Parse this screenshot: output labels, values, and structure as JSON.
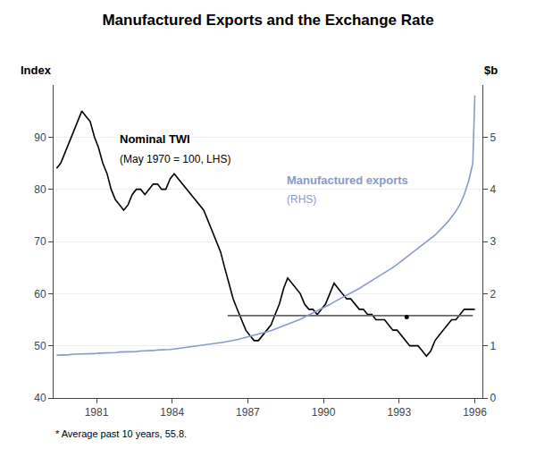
{
  "chart_data": {
    "type": "line",
    "title": "Manufactured Exports and the Exchange Rate",
    "y_label": "Index",
    "y2_label": "$b",
    "xlim": [
      1979.3,
      1996.3
    ],
    "xticks": [
      1981,
      1984,
      1987,
      1990,
      1993,
      1996
    ],
    "ylim": [
      40,
      100
    ],
    "yticks": [
      40,
      50,
      60,
      70,
      80,
      90
    ],
    "y2lim": [
      0,
      6
    ],
    "y2ticks": [
      0,
      1,
      2,
      3,
      4,
      5
    ],
    "grid": true,
    "series": [
      {
        "type": "line",
        "color": "#000000",
        "line_style": "solid",
        "x": [
          1979.42,
          1979.58,
          1979.75,
          1979.92,
          1980.08,
          1980.25,
          1980.42,
          1980.58,
          1980.75,
          1980.92,
          1981.08,
          1981.25,
          1981.42,
          1981.58,
          1981.75,
          1981.92,
          1982.08,
          1982.25,
          1982.42,
          1982.58,
          1982.75,
          1982.92,
          1983.08,
          1983.25,
          1983.42,
          1983.58,
          1983.75,
          1983.92,
          1984.08,
          1984.25,
          1984.42,
          1984.58,
          1984.75,
          1984.92,
          1985.08,
          1985.25,
          1985.42,
          1985.58,
          1985.75,
          1985.92,
          1986.08,
          1986.25,
          1986.42,
          1986.58,
          1986.75,
          1986.92,
          1987.08,
          1987.25,
          1987.42,
          1987.58,
          1987.75,
          1987.92,
          1988.08,
          1988.25,
          1988.42,
          1988.58,
          1988.75,
          1988.92,
          1989.08,
          1989.25,
          1989.42,
          1989.58,
          1989.75,
          1989.92,
          1990.08,
          1990.25,
          1990.42,
          1990.58,
          1990.75,
          1990.92,
          1991.08,
          1991.25,
          1991.42,
          1991.58,
          1991.75,
          1991.92,
          1992.08,
          1992.25,
          1992.42,
          1992.58,
          1992.75,
          1992.92,
          1993.08,
          1993.25,
          1993.42,
          1993.58,
          1993.75,
          1993.92,
          1994.08,
          1994.25,
          1994.42,
          1994.58,
          1994.75,
          1994.92,
          1995.08,
          1995.25,
          1995.42,
          1995.58,
          1995.75,
          1995.92,
          1996.0
        ],
        "values": [
          84,
          85,
          87,
          89,
          91,
          93,
          95,
          94,
          93,
          90,
          88,
          85,
          83,
          80,
          78,
          77,
          76,
          77,
          79,
          80,
          80,
          79,
          80,
          81,
          81,
          80,
          80,
          82,
          83,
          82,
          81,
          80,
          79,
          78,
          77,
          76,
          74,
          72,
          70,
          68,
          65,
          62,
          59,
          57,
          55,
          53,
          52,
          51,
          51,
          52,
          53,
          54,
          56,
          58,
          61,
          63,
          62,
          61,
          60,
          58,
          57,
          57,
          56,
          57,
          58,
          60,
          62,
          61,
          60,
          59,
          59,
          58,
          57,
          57,
          56,
          56,
          55,
          55,
          55,
          54,
          53,
          53,
          52,
          51,
          50,
          50,
          50,
          49,
          48,
          49,
          51,
          52,
          53,
          54,
          55,
          55,
          56,
          57,
          57,
          57,
          57
        ]
      },
      {
        "type": "line",
        "color": "#8899cc",
        "line_style": "solid",
        "axis": "y2",
        "x": [
          1979.42,
          1979.58,
          1979.75,
          1979.92,
          1980.08,
          1980.25,
          1980.42,
          1980.58,
          1980.75,
          1980.92,
          1981.08,
          1981.25,
          1981.42,
          1981.58,
          1981.75,
          1981.92,
          1982.08,
          1982.25,
          1982.42,
          1982.58,
          1982.75,
          1982.92,
          1983.08,
          1983.25,
          1983.42,
          1983.58,
          1983.75,
          1983.92,
          1984.08,
          1984.25,
          1984.42,
          1984.58,
          1984.75,
          1984.92,
          1985.08,
          1985.25,
          1985.42,
          1985.58,
          1985.75,
          1985.92,
          1986.08,
          1986.25,
          1986.42,
          1986.58,
          1986.75,
          1986.92,
          1987.08,
          1987.25,
          1987.42,
          1987.58,
          1987.75,
          1987.92,
          1988.08,
          1988.25,
          1988.42,
          1988.58,
          1988.75,
          1988.92,
          1989.08,
          1989.25,
          1989.42,
          1989.58,
          1989.75,
          1989.92,
          1990.08,
          1990.25,
          1990.42,
          1990.58,
          1990.75,
          1990.92,
          1991.08,
          1991.25,
          1991.42,
          1991.58,
          1991.75,
          1991.92,
          1992.08,
          1992.25,
          1992.42,
          1992.58,
          1992.75,
          1992.92,
          1993.08,
          1993.25,
          1993.42,
          1993.58,
          1993.75,
          1993.92,
          1994.08,
          1994.25,
          1994.42,
          1994.58,
          1994.75,
          1994.92,
          1995.08,
          1995.25,
          1995.42,
          1995.58,
          1995.75,
          1995.92,
          1996.0
        ],
        "values": [
          0.82,
          0.82,
          0.83,
          0.83,
          0.84,
          0.84,
          0.84,
          0.85,
          0.85,
          0.85,
          0.86,
          0.86,
          0.87,
          0.87,
          0.87,
          0.88,
          0.88,
          0.88,
          0.89,
          0.89,
          0.9,
          0.9,
          0.91,
          0.91,
          0.92,
          0.92,
          0.93,
          0.93,
          0.94,
          0.95,
          0.96,
          0.97,
          0.98,
          0.99,
          1.0,
          1.01,
          1.02,
          1.03,
          1.04,
          1.05,
          1.07,
          1.09,
          1.1,
          1.12,
          1.14,
          1.16,
          1.18,
          1.2,
          1.22,
          1.24,
          1.26,
          1.29,
          1.32,
          1.35,
          1.38,
          1.41,
          1.44,
          1.47,
          1.51,
          1.55,
          1.59,
          1.63,
          1.67,
          1.71,
          1.75,
          1.79,
          1.84,
          1.88,
          1.92,
          1.97,
          2.01,
          2.06,
          2.1,
          2.15,
          2.2,
          2.25,
          2.3,
          2.35,
          2.4,
          2.45,
          2.5,
          2.56,
          2.62,
          2.68,
          2.74,
          2.8,
          2.86,
          2.92,
          2.98,
          3.05,
          3.12,
          3.2,
          3.28,
          3.37,
          3.47,
          3.58,
          3.72,
          3.9,
          4.15,
          4.5,
          5.8
        ]
      },
      {
        "type": "line",
        "color": "#666666",
        "line_style": "solid",
        "x": [
          1986.2,
          1995.92
        ],
        "values": [
          55.8,
          55.8
        ]
      },
      {
        "type": "scatter",
        "color": "#000000",
        "marker": "dot",
        "x": [
          1993.3
        ],
        "values": [
          55.5
        ]
      }
    ],
    "annotations": [
      {
        "text": "Nominal TWI"
      },
      {
        "text": "(May 1970 = 100, LHS)"
      },
      {
        "text": "Manufactured exports",
        "color": "#8899cc"
      },
      {
        "text": "(RHS)",
        "color": "#8899cc"
      },
      {
        "text": "* Average past 10 years, 55.8."
      }
    ]
  }
}
